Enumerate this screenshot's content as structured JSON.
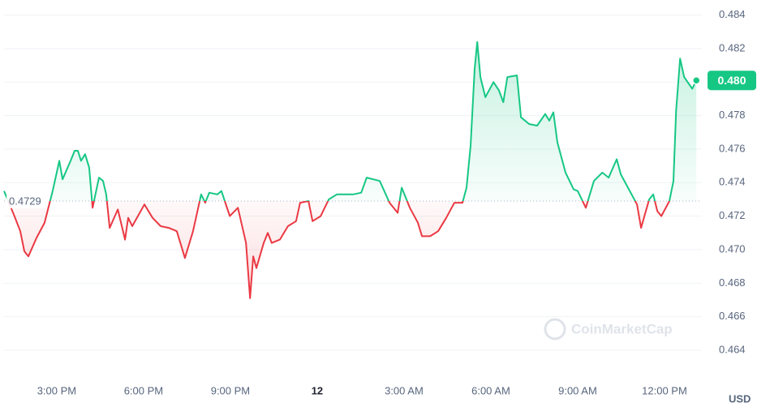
{
  "chart_data": {
    "type": "line",
    "x": [
      13.18,
      13.54,
      13.74,
      13.88,
      14.02,
      14.3,
      14.58,
      14.86,
      15.09,
      15.2,
      15.48,
      15.62,
      15.73,
      15.84,
      15.98,
      16.12,
      16.24,
      16.46,
      16.6,
      16.71,
      16.83,
      17.11,
      17.36,
      17.47,
      17.61,
      18.03,
      18.31,
      18.59,
      18.87,
      19.15,
      19.43,
      19.71,
      19.99,
      20.13,
      20.27,
      20.55,
      20.69,
      20.98,
      21.26,
      21.54,
      21.68,
      21.79,
      21.9,
      22.15,
      22.29,
      22.43,
      22.71,
      22.99,
      23.27,
      23.41,
      23.7,
      23.84,
      24.12,
      24.4,
      24.68,
      24.96,
      25.24,
      25.52,
      25.71,
      26.16,
      26.5,
      26.78,
      26.92,
      27.2,
      27.48,
      27.62,
      27.9,
      28.18,
      28.46,
      28.74,
      29.02,
      29.16,
      29.3,
      29.44,
      29.53,
      29.64,
      29.81,
      30.09,
      30.28,
      30.43,
      30.57,
      30.9,
      31.04,
      31.32,
      31.6,
      31.88,
      32.02,
      32.16,
      32.3,
      32.58,
      32.86,
      33.0,
      33.28,
      33.56,
      33.85,
      34.07,
      34.35,
      34.49,
      34.77,
      35.05,
      35.19,
      35.47,
      35.61,
      35.75,
      35.89,
      36.17,
      36.31,
      36.4,
      36.54,
      36.68,
      36.96,
      37.1
    ],
    "series": [
      {
        "color": "#16c784",
        "below_color": "#ea3943",
        "values": [
          0.4735,
          0.472,
          0.4711,
          0.4699,
          0.4696,
          0.4707,
          0.4716,
          0.4735,
          0.4753,
          0.4742,
          0.4753,
          0.4759,
          0.4759,
          0.4753,
          0.4757,
          0.4749,
          0.4725,
          0.4743,
          0.4741,
          0.4733,
          0.4713,
          0.4724,
          0.4706,
          0.4719,
          0.4714,
          0.4727,
          0.4719,
          0.4714,
          0.4713,
          0.4711,
          0.4695,
          0.4711,
          0.4733,
          0.4728,
          0.4734,
          0.4733,
          0.4735,
          0.472,
          0.4725,
          0.4704,
          0.4671,
          0.4696,
          0.4689,
          0.4704,
          0.471,
          0.4704,
          0.4706,
          0.4714,
          0.4717,
          0.4728,
          0.4729,
          0.4717,
          0.472,
          0.473,
          0.4733,
          0.4733,
          0.4733,
          0.4734,
          0.4743,
          0.4741,
          0.4728,
          0.4722,
          0.4737,
          0.4725,
          0.4716,
          0.4708,
          0.4708,
          0.4711,
          0.4719,
          0.4728,
          0.4728,
          0.4737,
          0.4762,
          0.4808,
          0.4824,
          0.4803,
          0.4791,
          0.48,
          0.4795,
          0.4788,
          0.4803,
          0.4804,
          0.4779,
          0.4775,
          0.4774,
          0.4781,
          0.4777,
          0.4782,
          0.4764,
          0.4746,
          0.4736,
          0.4735,
          0.4725,
          0.4741,
          0.4746,
          0.4743,
          0.4754,
          0.4745,
          0.4736,
          0.4727,
          0.4713,
          0.473,
          0.4733,
          0.4723,
          0.472,
          0.4729,
          0.4741,
          0.4783,
          0.4814,
          0.4803,
          0.4796,
          0.4801
        ]
      }
    ],
    "baseline": 0.4729,
    "current_label": "0.480",
    "xlim": [
      13.18,
      37.29
    ],
    "xticks": [
      {
        "value": 15,
        "label": "3:00 PM"
      },
      {
        "value": 18,
        "label": "6:00 PM"
      },
      {
        "value": 21,
        "label": "9:00 PM"
      },
      {
        "value": 24,
        "label": "12"
      },
      {
        "value": 27,
        "label": "3:00 AM"
      },
      {
        "value": 30,
        "label": "6:00 AM"
      },
      {
        "value": 33,
        "label": "9:00 AM"
      },
      {
        "value": 36,
        "label": "12:00 PM"
      }
    ],
    "ylim": [
      0.4625,
      0.4849
    ],
    "yticks": [
      0.464,
      0.466,
      0.468,
      {
        "value": 0.47,
        "label": "0.470"
      },
      0.472,
      0.474,
      0.476,
      0.478,
      {
        "value": 0.48,
        "label": "0.480"
      },
      0.482,
      0.484
    ],
    "grid": true,
    "unit": "USD",
    "watermark": "CoinMarketCap"
  }
}
